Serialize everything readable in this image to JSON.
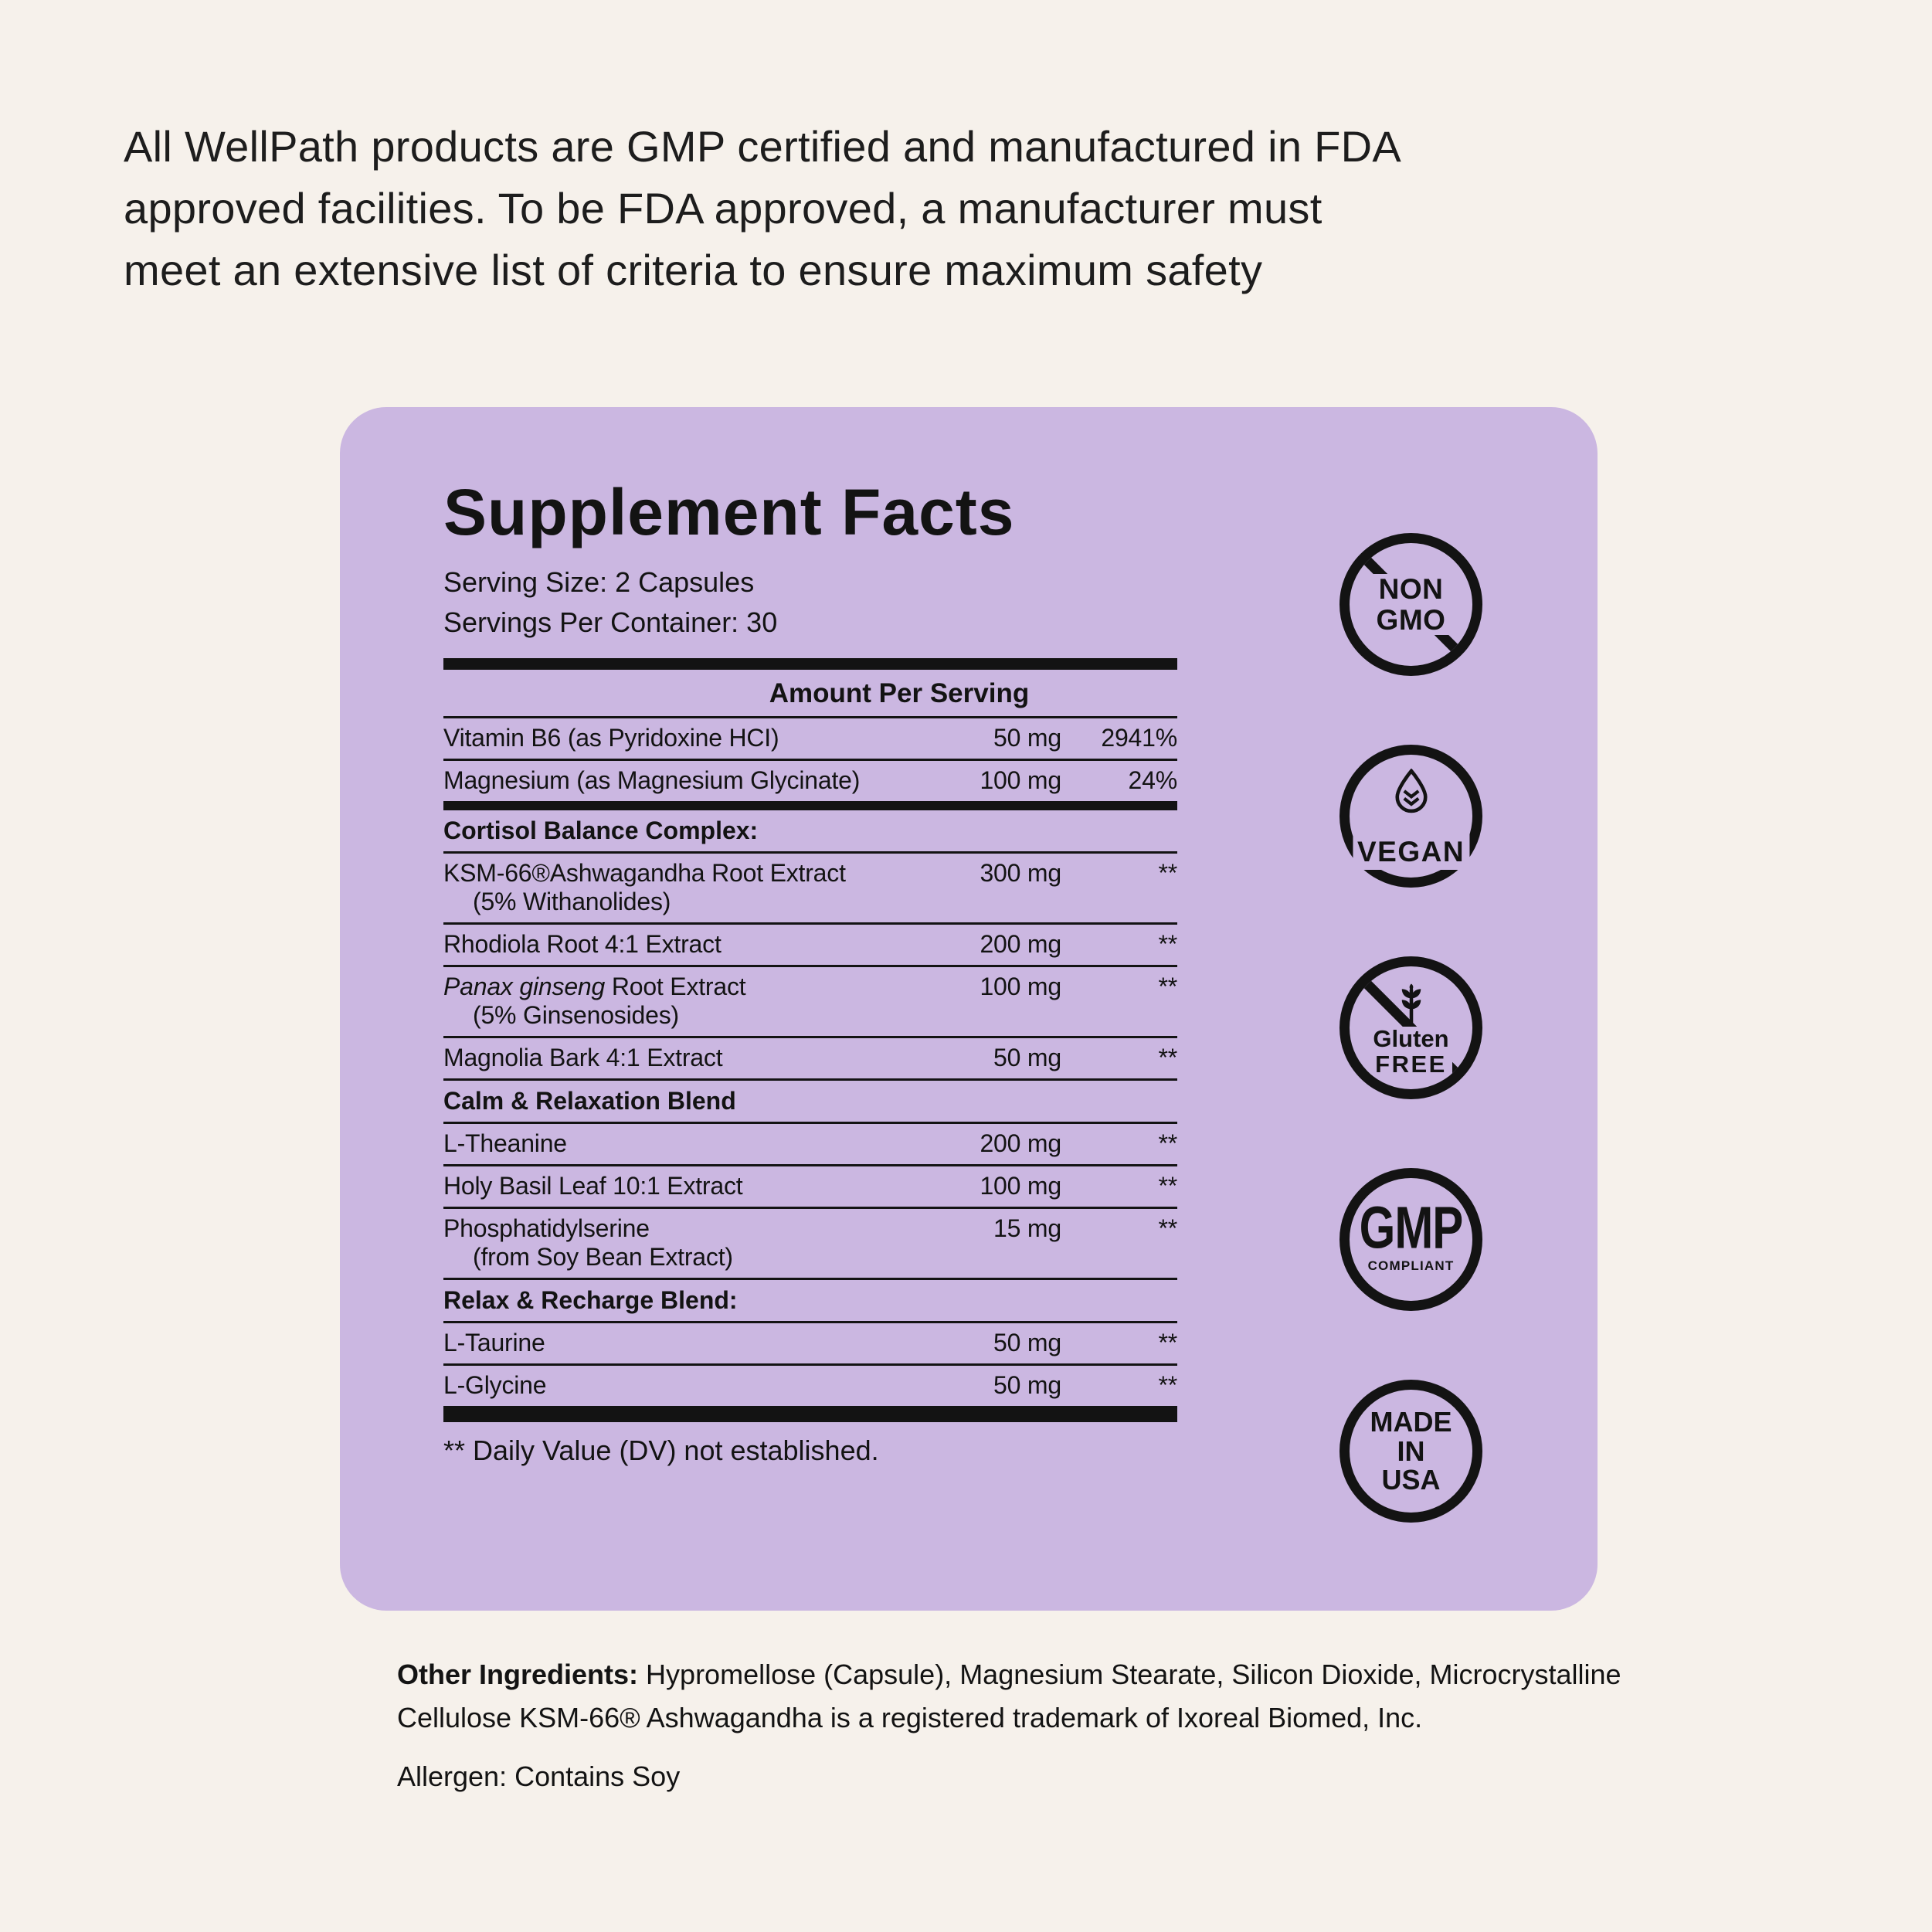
{
  "page": {
    "colors": {
      "background": "#F6F1EB",
      "card": "#CBB7E1",
      "text": "#131313"
    }
  },
  "header": {
    "lines": [
      "All WellPath products are GMP certified and manufactured in FDA",
      "approved facilities. To be FDA approved, a manufacturer must",
      "meet an extensive list of criteria to ensure maximum safety"
    ]
  },
  "supplement_facts": {
    "title": "Supplement Facts",
    "serving_size": "Serving Size: 2 Capsules",
    "servings_per_container": "Servings Per Container: 30",
    "amount_header": "Amount Per Serving",
    "rows": [
      {
        "type": "item",
        "name": "Vitamin B6 (as Pyridoxine HCI)",
        "amount": "50 mg",
        "dv": "2941%",
        "divider": "thin"
      },
      {
        "type": "item",
        "name": "Magnesium  (as Magnesium Glycinate)",
        "amount": "100 mg",
        "dv": "24%",
        "divider": "mid"
      },
      {
        "type": "section",
        "name": "Cortisol Balance Complex:",
        "divider": "thin"
      },
      {
        "type": "item",
        "name": "KSM-66®Ashwagandha Root Extract",
        "sub": "(5% Withanolides)",
        "amount": "300 mg",
        "dv": "**",
        "divider": "thin"
      },
      {
        "type": "item",
        "name": "Rhodiola Root 4:1 Extract",
        "amount": "200 mg",
        "dv": "**",
        "divider": "thin"
      },
      {
        "type": "item",
        "italic": "Panax ginseng",
        "name": " Root Extract",
        "sub": "(5% Ginsenosides)",
        "amount": "100 mg",
        "dv": "**",
        "divider": "thin"
      },
      {
        "type": "item",
        "name": "Magnolia Bark 4:1 Extract",
        "amount": "50 mg",
        "dv": "**",
        "divider": "thin"
      },
      {
        "type": "section",
        "name": "Calm & Relaxation Blend",
        "divider": "thin"
      },
      {
        "type": "item",
        "name": "L-Theanine",
        "amount": "200 mg",
        "dv": "**",
        "divider": "thin"
      },
      {
        "type": "item",
        "name": "Holy Basil Leaf 10:1 Extract",
        "amount": "100 mg",
        "dv": "**",
        "divider": "thin"
      },
      {
        "type": "item",
        "name": "Phosphatidylserine",
        "sub": "(from Soy Bean Extract)",
        "amount": "15 mg",
        "dv": "**",
        "divider": "thin"
      },
      {
        "type": "section",
        "name": "Relax & Recharge Blend:",
        "divider": "thin"
      },
      {
        "type": "item",
        "name": "L-Taurine",
        "amount": "50 mg",
        "dv": "**",
        "divider": "thin"
      },
      {
        "type": "item",
        "name": "L-Glycine",
        "amount": "50 mg",
        "dv": "**",
        "divider": "bottom"
      }
    ],
    "footnote": "** Daily Value (DV) not established."
  },
  "badges": [
    {
      "name": "non-gmo",
      "style": "nongmo",
      "crossed": true,
      "lines": [
        "NON",
        "GMO"
      ]
    },
    {
      "name": "vegan",
      "style": "vegan",
      "icon": "leaf-droplet",
      "lines": [
        "VEGAN"
      ]
    },
    {
      "name": "gluten-free",
      "style": "gluten",
      "crossed": true,
      "icon": "wheat",
      "lines": [
        "Gluten",
        "FREE"
      ]
    },
    {
      "name": "gmp-compliant",
      "style": "gmp",
      "lines": [
        "GMP",
        "COMPLIANT"
      ]
    },
    {
      "name": "made-in-usa",
      "style": "usa",
      "lines": [
        "MADE",
        "IN",
        "USA"
      ]
    }
  ],
  "footer": {
    "other_ingredients_label": "Other Ingredients:",
    "other_ingredients_text": "Hypromellose (Capsule), Magnesium Stearate, Silicon Dioxide, Microcrystalline Cellulose KSM-66® Ashwagandha is a registered trademark of Ixoreal Biomed, Inc.",
    "allergen": "Allergen: Contains Soy"
  }
}
